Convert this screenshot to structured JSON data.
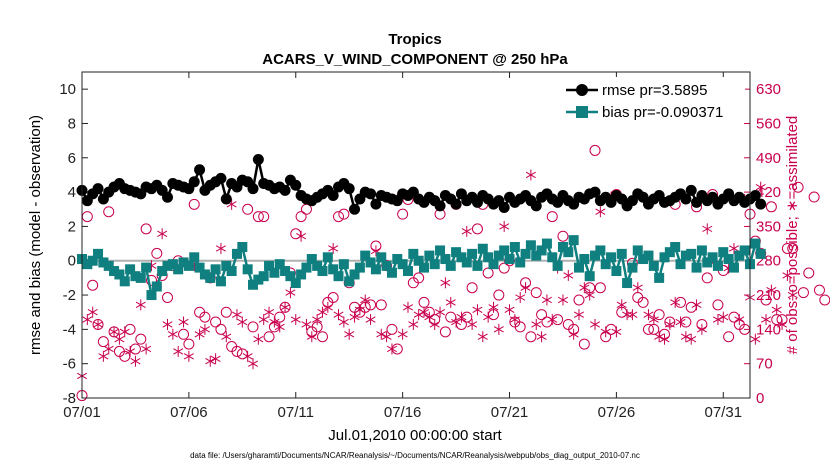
{
  "chart_data": {
    "type": "scatter",
    "title": "Tropics",
    "subtitle": "ACARS_V_WIND_COMPONENT @ 250 hPa",
    "xlabel": "Jul.01,2010 00:00:00 start",
    "ylabel_left": "rmse and bias (model - observation)",
    "ylabel_right": "# of obs: o=possible; ∗=assimilated",
    "footnote": "data file: /Users/gharamti/Documents/NCAR/Reanalysis/~/Documents/NCAR/Reanalysis/webpub/obs_diag_output_2010-07.nc",
    "xlim": [
      1,
      32.25
    ],
    "ylim_left": [
      -8,
      11
    ],
    "ylim_right": [
      0,
      665
    ],
    "x_ticks": [
      1,
      6,
      11,
      16,
      21,
      26,
      31
    ],
    "x_tick_labels": [
      "07/01",
      "07/06",
      "07/11",
      "07/16",
      "07/21",
      "07/26",
      "07/31"
    ],
    "y_left_ticks": [
      -8,
      -6,
      -4,
      -2,
      0,
      2,
      4,
      6,
      8,
      10
    ],
    "y_left_tick_labels": [
      "-8",
      "-6",
      "-4",
      "-2",
      "0",
      "2",
      "4",
      "6",
      "8",
      "10"
    ],
    "y_right_ticks": [
      0,
      70,
      140,
      210,
      280,
      350,
      420,
      490,
      560,
      630
    ],
    "y_right_tick_labels": [
      "0",
      "70",
      "140",
      "210",
      "280",
      "350",
      "420",
      "490",
      "560",
      "630"
    ],
    "zero_line": 0,
    "legend_position": "top-right",
    "legend": [
      {
        "label": "rmse pr=3.5895",
        "color": "#000000",
        "marker": "circle"
      },
      {
        "label": "bias pr=-0.090371",
        "color": "#0f7f7f",
        "marker": "square"
      }
    ],
    "colors": {
      "rmse": "#000000",
      "bias": "#0f7f7f",
      "obs": "#c8004e",
      "zero": "#b0b0b0"
    },
    "series": [
      {
        "name": "rmse",
        "x_start": 1.0,
        "x_step": 0.25,
        "values": [
          4.1,
          3.5,
          3.9,
          4.2,
          3.6,
          4.0,
          4.3,
          4.5,
          4.2,
          4.1,
          4.0,
          3.9,
          4.3,
          4.2,
          4.4,
          4.1,
          3.7,
          4.5,
          4.4,
          4.3,
          4.2,
          4.6,
          5.3,
          4.1,
          4.4,
          4.6,
          4.8,
          3.6,
          4.5,
          4.3,
          4.7,
          4.6,
          4.2,
          5.9,
          4.5,
          4.4,
          4.2,
          4.3,
          4.1,
          4.7,
          4.4,
          3.8,
          3.6,
          3.5,
          3.7,
          3.9,
          4.1,
          3.8,
          4.3,
          4.5,
          4.2,
          3.0,
          3.6,
          4.0,
          3.9,
          3.3,
          3.8,
          3.7,
          3.6,
          3.5,
          3.9,
          3.8,
          4.0,
          3.6,
          3.4,
          3.7,
          3.5,
          3.2,
          3.8,
          3.6,
          3.3,
          3.9,
          3.5,
          3.7,
          3.4,
          3.8,
          3.6,
          3.3,
          3.5,
          3.1,
          3.7,
          3.4,
          3.6,
          3.8,
          3.5,
          3.2,
          3.7,
          3.9,
          3.6,
          3.4,
          3.8,
          3.5,
          3.3,
          3.7,
          3.6,
          3.9,
          4.0,
          3.5,
          3.7,
          3.4,
          3.8,
          3.6,
          3.2,
          3.5,
          3.9,
          3.7,
          3.3,
          3.6,
          3.8,
          3.4,
          3.5,
          3.7,
          3.9,
          3.6,
          4.1,
          3.4,
          3.8,
          3.5,
          3.7,
          3.3,
          3.6,
          3.9,
          3.5,
          3.7,
          3.4,
          3.6,
          3.8,
          3.3
        ]
      },
      {
        "name": "bias",
        "x_start": 1.0,
        "x_step": 0.25,
        "values": [
          0.1,
          -0.2,
          0.0,
          0.4,
          -0.1,
          -0.3,
          -0.6,
          -0.8,
          -1.2,
          -0.5,
          -0.9,
          -1.0,
          -0.4,
          -2.0,
          -1.5,
          -0.6,
          -0.3,
          -0.2,
          -0.5,
          -0.1,
          -0.3,
          0.2,
          -0.4,
          -0.8,
          -1.0,
          -0.5,
          -1.2,
          -0.3,
          -0.6,
          0.4,
          0.8,
          -0.5,
          -1.4,
          -1.1,
          -0.9,
          -0.3,
          -0.7,
          -0.2,
          -0.6,
          -0.9,
          -1.3,
          -0.8,
          -0.4,
          0.1,
          -0.3,
          -0.6,
          0.2,
          -0.5,
          -0.9,
          -0.2,
          -1.2,
          -0.8,
          -0.4,
          0.3,
          -0.1,
          -0.5,
          0.2,
          -0.3,
          -0.7,
          0.1,
          -0.2,
          -0.6,
          0.4,
          0.0,
          -0.4,
          0.3,
          -0.2,
          0.6,
          0.1,
          -0.3,
          0.5,
          0.2,
          -0.1,
          0.4,
          -0.3,
          0.7,
          0.2,
          -0.2,
          0.3,
          0.6,
          0.1,
          0.8,
          -0.1,
          0.4,
          0.9,
          0.3,
          0.6,
          1.0,
          0.2,
          -0.3,
          0.8,
          0.5,
          1.2,
          -0.4,
          0.1,
          -0.9,
          0.3,
          0.6,
          -0.2,
          0.2,
          -0.6,
          0.4,
          -1.3,
          -0.4,
          0.6,
          0.1,
          0.3,
          -0.3,
          -1.0,
          0.2,
          0.5,
          0.8,
          -0.2,
          0.3,
          0.4,
          -0.4,
          0.6,
          -0.1,
          0.2,
          -0.3,
          0.5,
          0.1,
          -0.4,
          0.3,
          0.6,
          -0.2,
          1.0,
          0.4
        ]
      },
      {
        "name": "obs_possible",
        "x_start": 1.0,
        "x_step": 0.25,
        "values": [
          5,
          370,
          230,
          150,
          115,
          380,
          135,
          95,
          85,
          140,
          100,
          120,
          345,
          240,
          295,
          250,
          205,
          270,
          280,
          130,
          110,
          395,
          175,
          165,
          245,
          155,
          140,
          175,
          105,
          95,
          90,
          385,
          145,
          370,
          370,
          125,
          145,
          165,
          185,
          255,
          335,
          370,
          385,
          135,
          145,
          125,
          195,
          205,
          370,
          375,
          235,
          185,
          175,
          185,
          190,
          310,
          190,
          270,
          140,
          100,
          375,
          405,
          235,
          245,
          195,
          175,
          160,
          375,
          135,
          165,
          395,
          150,
          165,
          225,
          345,
          395,
          255,
          170,
          210,
          265,
          280,
          155,
          145,
          235,
          125,
          215,
          170,
          155,
          370,
          160,
          330,
          150,
          140,
          200,
          110,
          225,
          505,
          225,
          125,
          140,
          415,
          175,
          395,
          275,
          205,
          195,
          140,
          140,
          170,
          130,
          155,
          395,
          195,
          155,
          185,
          390,
          150,
          245,
          415,
          190,
          260,
          125,
          165,
          150,
          140,
          375,
          320,
          295,
          200,
          390,
          160,
          160,
          305,
          305,
          430,
          215,
          255,
          410,
          220,
          200
        ]
      },
      {
        "name": "obs_assimilated",
        "x_start": 1.0,
        "x_step": 0.25,
        "values": [
          45,
          160,
          175,
          150,
          85,
          100,
          135,
          120,
          135,
          95,
          75,
          190,
          100,
          270,
          230,
          335,
          150,
          130,
          95,
          155,
          85,
          270,
          130,
          140,
          75,
          80,
          305,
          125,
          395,
          170,
          155,
          85,
          70,
          120,
          160,
          175,
          155,
          145,
          185,
          215,
          160,
          330,
          150,
          125,
          160,
          175,
          185,
          305,
          170,
          155,
          130,
          165,
          180,
          200,
          160,
          300,
          130,
          125,
          100,
          405,
          130,
          185,
          150,
          170,
          175,
          165,
          150,
          175,
          235,
          195,
          155,
          165,
          340,
          150,
          180,
          125,
          165,
          185,
          140,
          350,
          180,
          160,
          205,
          225,
          455,
          150,
          125,
          200,
          160,
          265,
          200,
          250,
          130,
          170,
          225,
          210,
          150,
          380,
          135,
          410,
          135,
          190,
          170,
          170,
          225,
          410,
          170,
          160,
          125,
          120,
          150,
          195,
          155,
          125,
          120,
          190,
          140,
          345,
          285,
          160,
          165,
          265,
          305,
          160,
          405,
          205,
          120,
          430,
          160,
          220,
          180,
          150,
          250,
          210
        ]
      }
    ]
  }
}
